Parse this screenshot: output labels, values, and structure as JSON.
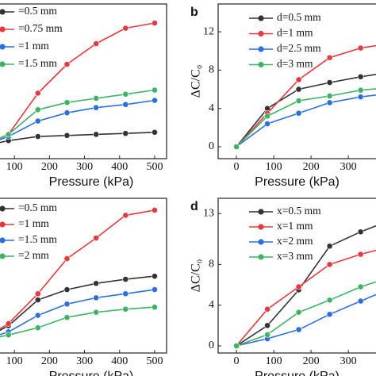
{
  "chart_data": [
    {
      "type": "line",
      "x_label": "Pressure (kPa)",
      "x": [
        0,
        83,
        167,
        250,
        333,
        417,
        500
      ],
      "xlim": [
        -9,
        534
      ],
      "ylim": [
        -1.15,
        13.85
      ],
      "xticks": [
        100,
        200,
        300,
        400,
        500
      ],
      "series": [
        {
          "name": "=0.5 mm",
          "color": "#333333",
          "values": [
            0,
            0.6,
            1.0,
            1.1,
            1.2,
            1.3,
            1.4
          ]
        },
        {
          "name": "=0.75 mm",
          "color": "#e8383d",
          "values": [
            0,
            1.2,
            5.2,
            8.0,
            10.0,
            11.5,
            12.0
          ]
        },
        {
          "name": "=1 mm",
          "color": "#2a6fdb",
          "values": [
            0,
            1.0,
            2.5,
            3.3,
            3.8,
            4.1,
            4.5
          ]
        },
        {
          "name": "=1.5 mm",
          "color": "#3cb464",
          "values": [
            0,
            1.2,
            3.6,
            4.3,
            4.7,
            5.1,
            5.5
          ]
        }
      ]
    },
    {
      "type": "line",
      "panel_label": "b",
      "x_label": "Pressure (kPa)",
      "y_label": "ΔC/C₀",
      "x": [
        0,
        83,
        167,
        250,
        333,
        417
      ],
      "xlim": [
        -49,
        472
      ],
      "ylim": [
        -1.24,
        14.9
      ],
      "xticks": [
        0,
        100,
        200,
        300,
        400
      ],
      "yticks": [
        0,
        4,
        8,
        12
      ],
      "series": [
        {
          "name": "d=0.5 mm",
          "color": "#333333",
          "values": [
            0,
            4.0,
            6.0,
            6.7,
            7.3,
            7.8
          ]
        },
        {
          "name": "d=1 mm",
          "color": "#e8383d",
          "values": [
            0,
            3.5,
            7.0,
            9.3,
            10.3,
            10.8
          ]
        },
        {
          "name": "d=2.5 mm",
          "color": "#2a6fdb",
          "values": [
            0,
            2.4,
            3.5,
            4.6,
            5.2,
            5.6
          ]
        },
        {
          "name": "d=3 mm",
          "color": "#3cb464",
          "values": [
            0,
            3.2,
            4.8,
            5.3,
            5.9,
            6.2
          ]
        }
      ]
    },
    {
      "type": "line",
      "x_label": "Pressure (kPa)",
      "x": [
        0,
        83,
        167,
        250,
        333,
        417,
        500
      ],
      "xlim": [
        -9,
        534
      ],
      "ylim": [
        -1.15,
        13.85
      ],
      "xticks": [
        100,
        200,
        300,
        400,
        500
      ],
      "series": [
        {
          "name": "=0.5 mm",
          "color": "#333333",
          "values": [
            0,
            1.5,
            4.0,
            5.0,
            5.6,
            6.0,
            6.3
          ]
        },
        {
          "name": "=1 mm",
          "color": "#e8383d",
          "values": [
            0,
            1.7,
            4.6,
            8.0,
            10.0,
            12.2,
            12.7
          ]
        },
        {
          "name": "=1.5 mm",
          "color": "#2a6fdb",
          "values": [
            0,
            0.9,
            2.5,
            3.6,
            4.2,
            4.6,
            5.0
          ]
        },
        {
          "name": "=2 mm",
          "color": "#3cb464",
          "values": [
            0,
            0.6,
            1.3,
            2.3,
            2.8,
            3.1,
            3.3
          ]
        }
      ]
    },
    {
      "type": "line",
      "panel_label": "d",
      "x_label": "Pressure (kPa)",
      "y_label": "ΔC/C₀",
      "x": [
        0,
        83,
        167,
        250,
        333,
        417
      ],
      "xlim": [
        -49,
        472
      ],
      "ylim": [
        -0.7,
        14.5
      ],
      "xticks": [
        0,
        100,
        200,
        300,
        400
      ],
      "yticks": [
        0,
        4,
        8,
        13
      ],
      "series": [
        {
          "name": "x=0.5 mm",
          "color": "#333333",
          "values": [
            0,
            2.0,
            5.5,
            9.8,
            11.2,
            12.4
          ]
        },
        {
          "name": "x=1 mm",
          "color": "#e8383d",
          "values": [
            0,
            3.6,
            5.8,
            8.0,
            9.0,
            9.8
          ]
        },
        {
          "name": "x=2 mm",
          "color": "#2a6fdb",
          "values": [
            0,
            0.7,
            1.6,
            3.1,
            4.4,
            5.7
          ]
        },
        {
          "name": "x=3 mm",
          "color": "#3cb464",
          "values": [
            0,
            1.1,
            3.3,
            4.5,
            5.8,
            6.8
          ]
        }
      ]
    }
  ]
}
